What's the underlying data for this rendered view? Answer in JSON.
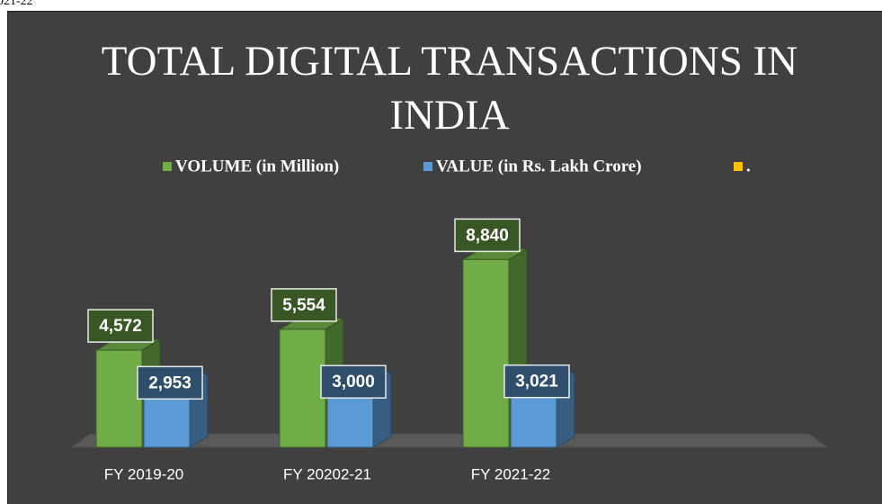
{
  "caption": "021-22",
  "chart_data": {
    "type": "bar3d",
    "title": "TOTAL DIGITAL TRANSACTIONS IN INDIA",
    "categories": [
      "FY 2019-20",
      "FY 20202-21",
      "FY 2021-22"
    ],
    "series": [
      {
        "name": "VOLUME (in Million)",
        "color": "#70ad47",
        "values": [
          4572,
          5554,
          8840
        ],
        "value_labels": [
          "4,572",
          "5,554",
          "8,840"
        ]
      },
      {
        "name": "VALUE (in Rs. Lakh Crore)",
        "color": "#5b9bd5",
        "values": [
          2953,
          3000,
          3021
        ],
        "value_labels": [
          "2,953",
          "3,000",
          "3,021"
        ]
      },
      {
        "name": ".",
        "color": "#ffc000",
        "values": [
          null,
          null,
          null
        ]
      }
    ],
    "ylim": [
      0,
      10000
    ],
    "legend": "top"
  }
}
